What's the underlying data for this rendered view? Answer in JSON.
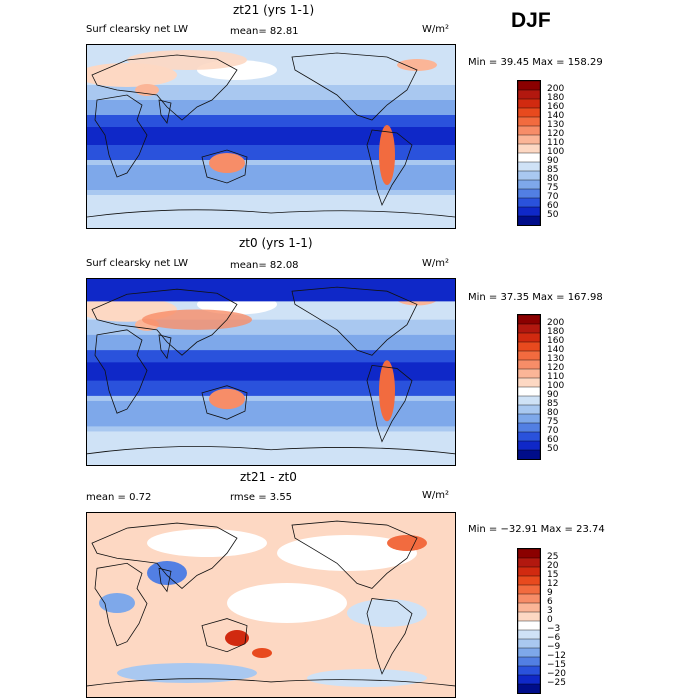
{
  "season": "DJF",
  "panels": [
    {
      "title": "zt21 (yrs 1-1)",
      "var_label": "Surf clearsky net LW",
      "stat1": "mean=  82.81",
      "stat2": "",
      "units": "W/m²",
      "minmax": "Min =  39.45 Max = 158.29",
      "colorbar": {
        "levels": [
          "200",
          "180",
          "160",
          "140",
          "130",
          "120",
          "110",
          "100",
          "90",
          "85",
          "80",
          "75",
          "70",
          "60",
          "50"
        ],
        "colors": [
          "#8b0000",
          "#b2180f",
          "#d12a10",
          "#e84a1e",
          "#f26b3f",
          "#f78d68",
          "#fbb597",
          "#fdd8c3",
          "#ffffff",
          "#cfe2f6",
          "#a9c8f0",
          "#7ea8ea",
          "#527fe3",
          "#2a52dc",
          "#0f28c8",
          "#000d8a"
        ]
      }
    },
    {
      "title": "zt0 (yrs 1-1)",
      "var_label": "Surf clearsky net LW",
      "stat1": "mean=  82.08",
      "stat2": "",
      "units": "W/m²",
      "minmax": "Min =  37.35 Max = 167.98",
      "colorbar": {
        "levels": [
          "200",
          "180",
          "160",
          "140",
          "130",
          "120",
          "110",
          "100",
          "90",
          "85",
          "80",
          "75",
          "70",
          "60",
          "50"
        ],
        "colors": [
          "#8b0000",
          "#b2180f",
          "#d12a10",
          "#e84a1e",
          "#f26b3f",
          "#f78d68",
          "#fbb597",
          "#fdd8c3",
          "#ffffff",
          "#cfe2f6",
          "#a9c8f0",
          "#7ea8ea",
          "#527fe3",
          "#2a52dc",
          "#0f28c8",
          "#000d8a"
        ]
      }
    },
    {
      "title": "zt21 - zt0",
      "var_label": "",
      "stat1": "mean =   0.72",
      "stat2": "rmse =   3.55",
      "units": "W/m²",
      "minmax": "Min = −32.91 Max =  23.74",
      "colorbar": {
        "levels": [
          "25",
          "20",
          "15",
          "12",
          "9",
          "6",
          "3",
          "0",
          "−3",
          "−6",
          "−9",
          "−12",
          "−15",
          "−20",
          "−25"
        ],
        "colors": [
          "#8b0000",
          "#b2180f",
          "#d12a10",
          "#e84a1e",
          "#f26b3f",
          "#f78d68",
          "#fbb597",
          "#fdd8c3",
          "#ffffff",
          "#cfe2f6",
          "#a9c8f0",
          "#7ea8ea",
          "#527fe3",
          "#2a52dc",
          "#0f28c8",
          "#000d8a"
        ]
      }
    }
  ]
}
